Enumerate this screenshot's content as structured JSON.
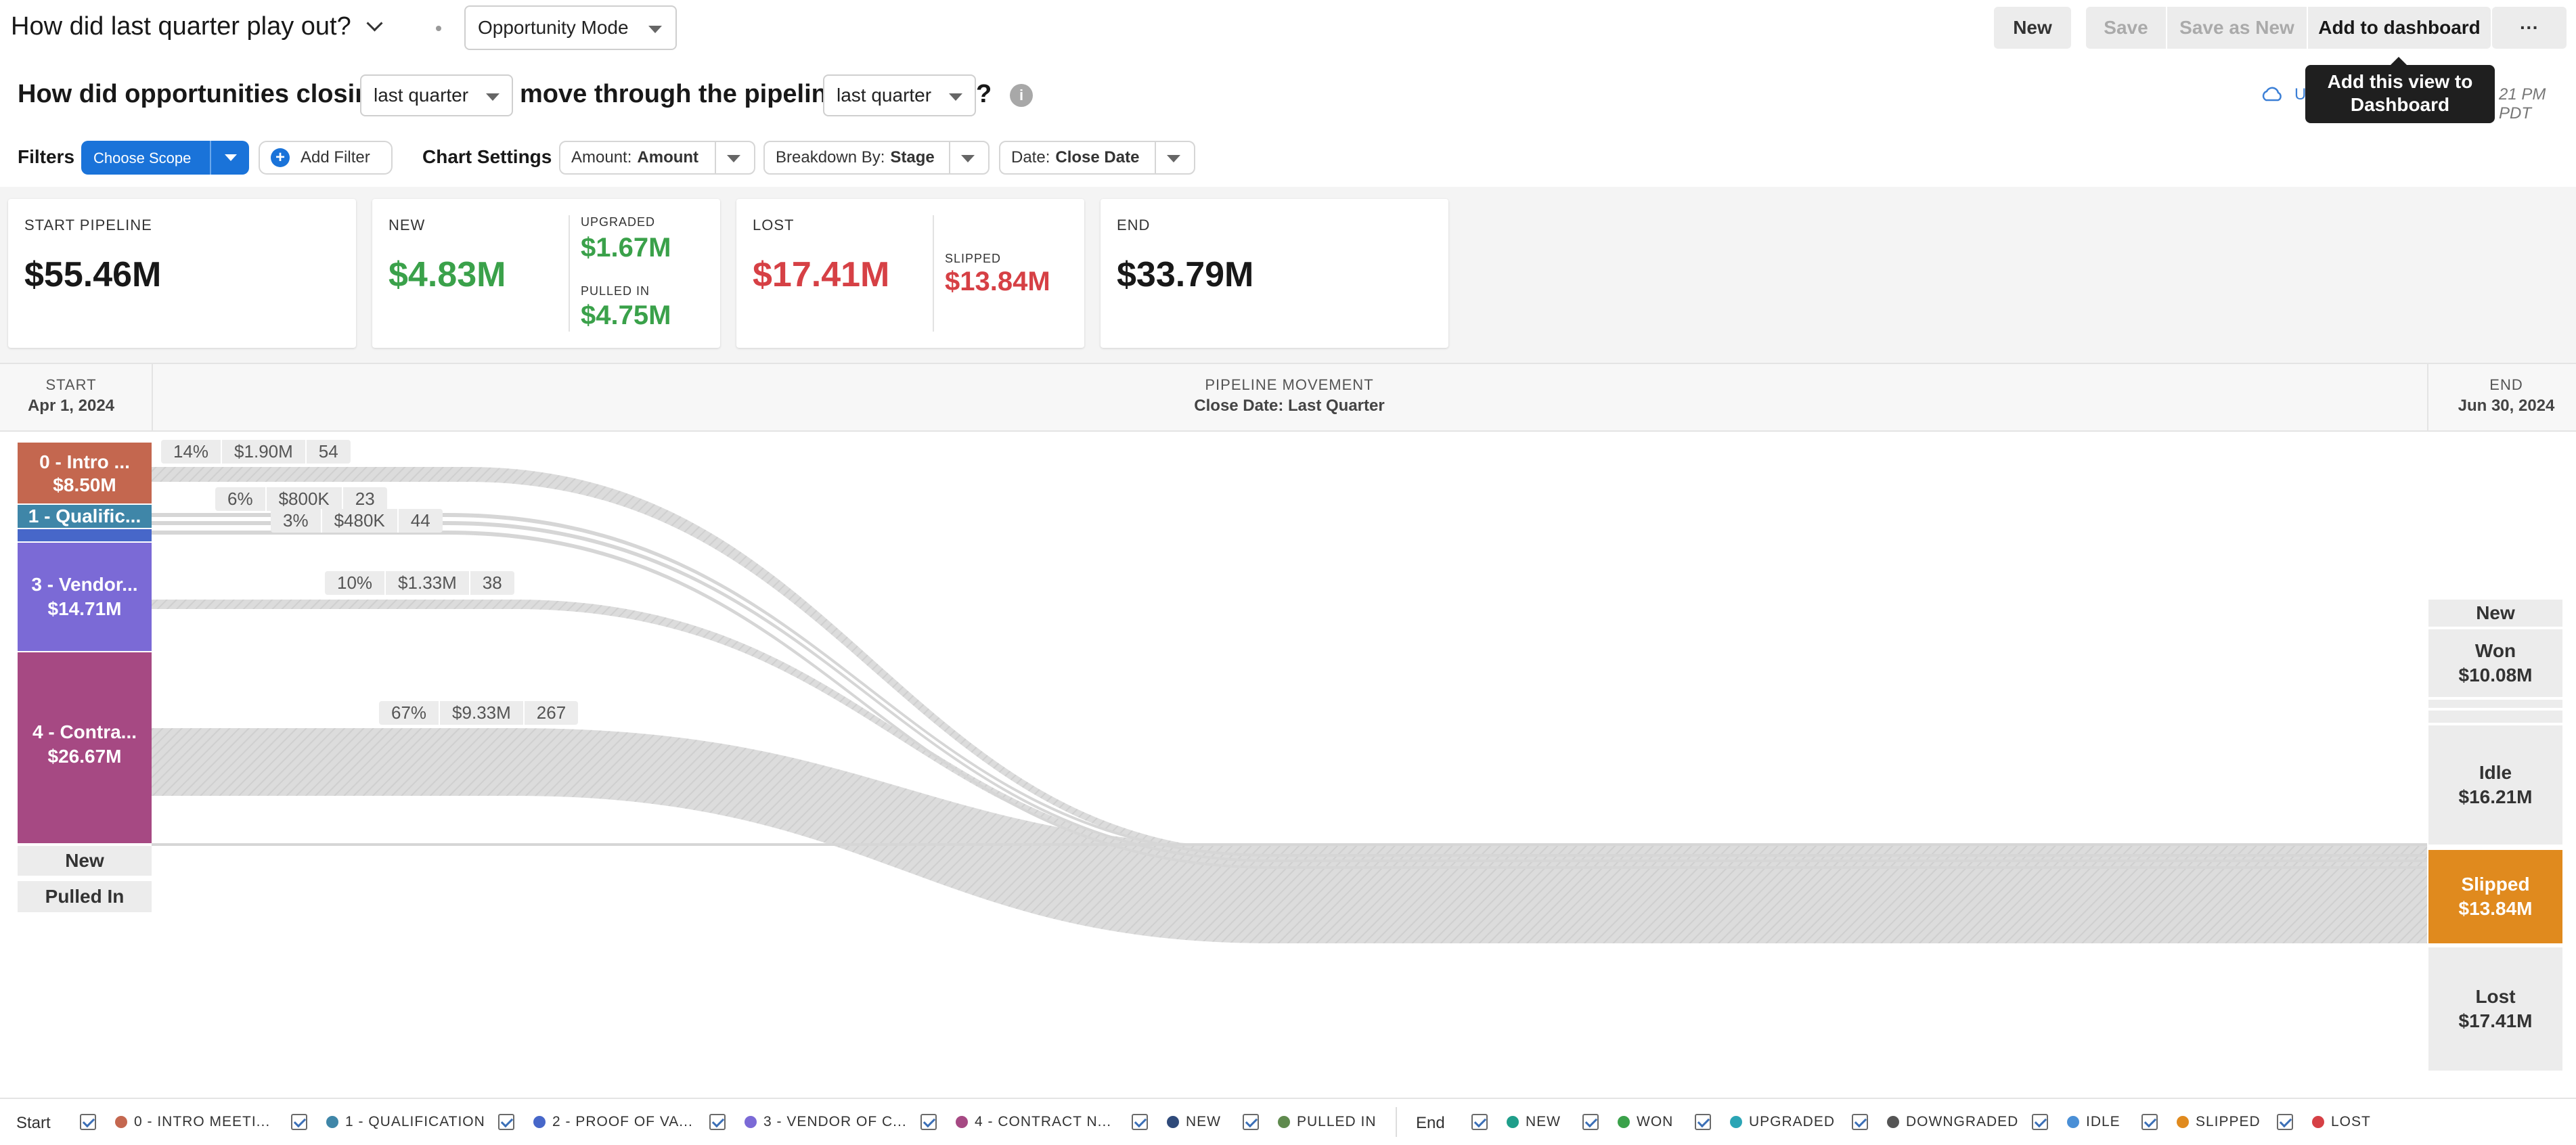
{
  "header": {
    "title": "How did last quarter play out?",
    "mode": "Opportunity Mode",
    "buttons": {
      "new": "New",
      "save": "Save",
      "save_as_new": "Save as New",
      "add_to_dashboard": "Add to dashboard",
      "more": "···"
    },
    "tooltip": "Add this view to Dashboard",
    "updated_text": "U",
    "updated_time": "21 PM PDT"
  },
  "question": {
    "part1": "How did opportunities closing",
    "period1": "last quarter",
    "part2": "move through the pipeline",
    "period2": "last quarter",
    "qmark": "?"
  },
  "filters": {
    "label": "Filters",
    "scope": "Choose Scope",
    "add_filter": "Add Filter",
    "chart_settings": "Chart Settings",
    "amount_key": "Amount:",
    "amount_val": "Amount",
    "breakdown_key": "Breakdown By:",
    "breakdown_val": "Stage",
    "date_key": "Date:",
    "date_val": "Close Date"
  },
  "kpis": {
    "start_label": "START PIPELINE",
    "start_value": "$55.46M",
    "new_label": "NEW",
    "new_value": "$4.83M",
    "upgraded_label": "UPGRADED",
    "upgraded_value": "$1.67M",
    "pulled_label": "PULLED IN",
    "pulled_value": "$4.75M",
    "lost_label": "LOST",
    "lost_value": "$17.41M",
    "slipped_label": "SLIPPED",
    "slipped_value": "$13.84M",
    "end_label": "END",
    "end_value": "$33.79M"
  },
  "pipeline": {
    "start_label": "START",
    "start_date": "Apr 1, 2024",
    "movement_label": "PIPELINE MOVEMENT",
    "movement_sub": "Close Date: Last Quarter",
    "end_label": "END",
    "end_date": "Jun 30, 2024"
  },
  "start_stages": [
    {
      "name": "0 - Intro ...",
      "value": "$8.50M",
      "color": "#c4674f"
    },
    {
      "name": "1 - Qualific...",
      "value": "",
      "color": "#3f86a8"
    },
    {
      "name": "3 - Vendor...",
      "value": "$14.71M",
      "color": "#7b6ad6"
    },
    {
      "name": "4 - Contra...",
      "value": "$26.67M",
      "color": "#a64983"
    }
  ],
  "start_extra": [
    "New",
    "Pulled In"
  ],
  "flow_labels": [
    {
      "pct": "14%",
      "amt": "$1.90M",
      "cnt": "54"
    },
    {
      "pct": "6%",
      "amt": "$800K",
      "cnt": "23"
    },
    {
      "pct": "3%",
      "amt": "$480K",
      "cnt": "44"
    },
    {
      "pct": "10%",
      "amt": "$1.33M",
      "cnt": "38"
    },
    {
      "pct": "67%",
      "amt": "$9.33M",
      "cnt": "267"
    }
  ],
  "end_blocks": {
    "new": "New",
    "won_name": "Won",
    "won_value": "$10.08M",
    "idle_name": "Idle",
    "idle_value": "$16.21M",
    "slipped_name": "Slipped",
    "slipped_value": "$13.84M",
    "slipped_color": "#e08a1e",
    "lost_name": "Lost",
    "lost_value": "$17.41M"
  },
  "legend": {
    "start": "Start",
    "end": "End",
    "start_items": [
      {
        "label": "0 - INTRO MEETI...",
        "color": "#c4674f"
      },
      {
        "label": "1 - QUALIFICATION",
        "color": "#3f86a8"
      },
      {
        "label": "2 - PROOF OF VA...",
        "color": "#4767c9"
      },
      {
        "label": "3 - VENDOR OF C...",
        "color": "#7b6ad6"
      },
      {
        "label": "4 - CONTRACT N...",
        "color": "#a64983"
      },
      {
        "label": "NEW",
        "color": "#2f4a7a"
      },
      {
        "label": "PULLED IN",
        "color": "#5f8a4e"
      }
    ],
    "end_items": [
      {
        "label": "NEW",
        "color": "#1f9e8a"
      },
      {
        "label": "WON",
        "color": "#3aa14a"
      },
      {
        "label": "UPGRADED",
        "color": "#2ba5b5"
      },
      {
        "label": "DOWNGRADED",
        "color": "#555555"
      },
      {
        "label": "IDLE",
        "color": "#4a8fd6"
      },
      {
        "label": "SLIPPED",
        "color": "#e08a1e"
      },
      {
        "label": "LOST",
        "color": "#d64045"
      }
    ]
  },
  "colors": {
    "accent": "#1a73d9",
    "green": "#3aa14a",
    "red": "#d64045"
  }
}
